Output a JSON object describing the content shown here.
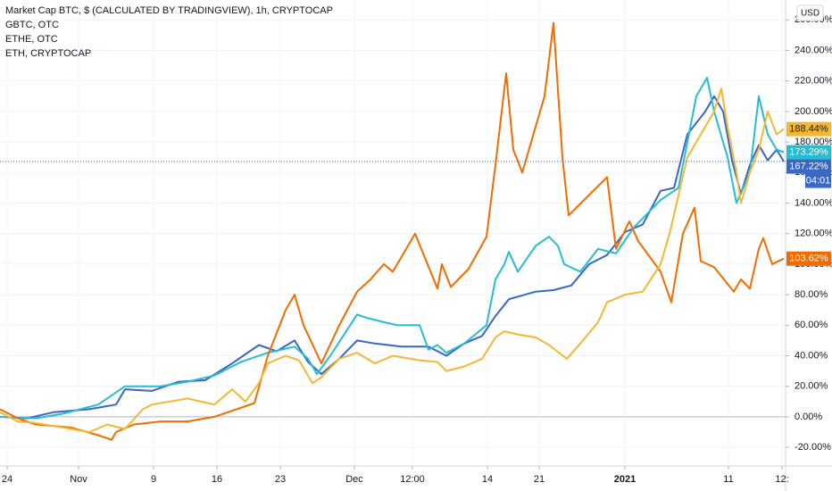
{
  "chart_data": {
    "type": "line",
    "currency": "USD",
    "countdown": "04:01",
    "grid": true,
    "xlim": [
      0,
      88
    ],
    "ylim": [
      -32.2,
      273
    ],
    "xticks": [
      {
        "value": 0.8,
        "label": "24"
      },
      {
        "value": 8.8,
        "label": "Nov"
      },
      {
        "value": 17.2,
        "label": "9"
      },
      {
        "value": 24.3,
        "label": "16"
      },
      {
        "value": 31.4,
        "label": "23"
      },
      {
        "value": 39.7,
        "label": "Dec"
      },
      {
        "value": 46.2,
        "label": "12:00"
      },
      {
        "value": 54.6,
        "label": "14"
      },
      {
        "value": 60.4,
        "label": "21"
      },
      {
        "value": 70,
        "label": "2021"
      },
      {
        "value": 81.6,
        "label": "11"
      },
      {
        "value": 87.6,
        "label": "12:"
      }
    ],
    "yticks": [
      {
        "value": -20,
        "label": "-20.00%"
      },
      {
        "value": 0,
        "label": "0.00%"
      },
      {
        "value": 20,
        "label": "20.00%"
      },
      {
        "value": 40,
        "label": "40.00%"
      },
      {
        "value": 60,
        "label": "60.00%"
      },
      {
        "value": 80,
        "label": "80.00%"
      },
      {
        "value": 100,
        "label": "100.00%"
      },
      {
        "value": 120,
        "label": "120.00%"
      },
      {
        "value": 140,
        "label": "140.00%"
      },
      {
        "value": 160,
        "label": "160.00%"
      },
      {
        "value": 180,
        "label": "180.00%"
      },
      {
        "value": 200,
        "label": "200.00%"
      },
      {
        "value": 220,
        "label": "220.00%"
      },
      {
        "value": 240,
        "label": "240.00%"
      },
      {
        "value": 260,
        "label": "260.00%"
      }
    ],
    "series": [
      {
        "name": "Market Cap BTC, $ (CALCULATED BY TRADINGVIEW), 1h, CRYPTOCAP",
        "color": "#3a66c4",
        "last_label": "167.22%",
        "x": [
          0,
          3,
          6,
          10,
          13,
          14,
          17,
          20,
          23,
          26,
          29,
          31,
          33,
          34.5,
          36,
          38,
          40,
          42,
          45,
          48,
          50,
          52,
          54,
          55.5,
          57,
          60,
          62,
          64,
          66,
          68,
          70,
          72,
          74,
          75.5,
          77,
          79,
          80,
          81,
          82,
          83,
          84,
          85,
          86,
          87,
          87.8
        ],
        "values": [
          0,
          -1,
          3,
          5,
          8,
          18,
          17,
          23,
          24,
          35,
          47,
          43,
          50,
          36,
          28,
          38,
          50,
          48,
          46,
          46,
          40,
          48,
          53,
          66,
          77,
          82,
          83,
          86,
          100,
          106,
          121,
          126,
          148,
          150,
          185,
          200,
          210,
          200,
          168,
          146,
          165,
          178,
          168,
          175,
          167.22
        ]
      },
      {
        "name": "GBTC, OTC",
        "color": "#26bcd2",
        "last_label": "173.29%",
        "x": [
          0,
          4,
          7,
          11,
          14,
          18,
          21,
          24,
          27,
          30,
          33,
          34.5,
          35.5,
          37,
          40,
          41,
          43,
          44.5,
          47,
          48,
          49,
          50,
          52,
          54.5,
          55.5,
          56.5,
          57,
          58,
          60,
          61.5,
          62.5,
          63.2,
          65,
          67,
          69,
          71,
          74,
          76,
          78,
          79.2,
          80,
          81.5,
          82.5,
          84,
          85,
          86,
          87,
          87.8
        ],
        "values": [
          0,
          -1,
          2,
          8,
          20,
          20,
          23,
          27,
          36,
          42,
          46,
          38,
          28,
          40,
          67,
          65,
          62,
          60,
          60,
          44,
          47,
          42,
          48,
          60,
          90,
          100,
          108,
          95,
          112,
          118,
          112,
          100,
          95,
          110,
          107,
          124,
          142,
          150,
          210,
          222,
          200,
          170,
          140,
          160,
          210,
          185,
          175,
          173.29
        ]
      },
      {
        "name": "ETHE, OTC",
        "color": "#ef6c00",
        "last_label": "103.62%",
        "x": [
          0,
          2,
          4,
          8,
          11,
          12.5,
          13,
          15,
          18,
          21,
          24,
          26.5,
          27.5,
          28.5,
          30,
          32,
          33,
          34,
          36,
          38,
          40,
          41.5,
          43,
          44,
          46.5,
          49,
          49.5,
          50.5,
          52.5,
          54.5,
          55.5,
          56.7,
          57.5,
          58.5,
          60,
          61,
          62,
          63,
          63.7,
          68,
          69,
          70.5,
          71.5,
          74,
          75.2,
          76.5,
          77.8,
          78.5,
          80,
          82.2,
          83,
          84,
          85,
          85.5,
          86.5,
          87.8
        ],
        "values": [
          5,
          -1,
          -5,
          -7,
          -12,
          -15,
          -10,
          -5,
          -3,
          -3,
          0,
          5,
          7,
          9,
          40,
          70,
          80,
          60,
          35,
          60,
          82,
          90,
          100,
          95,
          120,
          84,
          100,
          85,
          97,
          118,
          165,
          225,
          175,
          160,
          190,
          210,
          258,
          170,
          132,
          157,
          110,
          128,
          115,
          95,
          75,
          120,
          137,
          102,
          98,
          82,
          90,
          84,
          110,
          117,
          100,
          103.62
        ]
      },
      {
        "name": "ETH, CRYPTOCAP",
        "color": "#f5b731",
        "last_label": "188.44%",
        "x": [
          0,
          2,
          4,
          6,
          8,
          10,
          12,
          14,
          16,
          17,
          19,
          21,
          24,
          26,
          27.5,
          29,
          30,
          32,
          33.5,
          35,
          36,
          38,
          40,
          42,
          44,
          47,
          49,
          50,
          52,
          54,
          55.5,
          56.5,
          58,
          60,
          61.5,
          63.5,
          65,
          67,
          68,
          70,
          72,
          74,
          75,
          77,
          79,
          80,
          80.8,
          81.5,
          82.5,
          83,
          84,
          85,
          86,
          87,
          87.8
        ],
        "values": [
          3,
          -3,
          -4,
          -6,
          -8,
          -10,
          -5,
          -8,
          5,
          8,
          10,
          12,
          8,
          18,
          10,
          22,
          35,
          40,
          37,
          22,
          26,
          38,
          42,
          35,
          40,
          37,
          36,
          30,
          33,
          38,
          52,
          56,
          54,
          52,
          47,
          38,
          48,
          62,
          75,
          80,
          82,
          100,
          120,
          170,
          190,
          200,
          215,
          190,
          160,
          140,
          160,
          175,
          200,
          185,
          188.44
        ]
      }
    ]
  }
}
